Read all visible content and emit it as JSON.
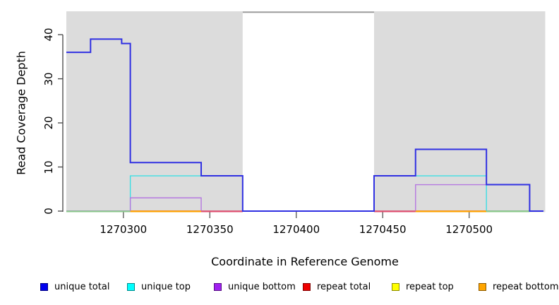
{
  "chart_data": {
    "type": "line",
    "step": true,
    "title": "",
    "xlabel": "Coordinate in Reference Genome",
    "ylabel": "Read Coverage Depth",
    "xlim": [
      1270267,
      1270543
    ],
    "ylim": [
      0,
      45.3
    ],
    "x_ticks": [
      1270300,
      1270350,
      1270400,
      1270450,
      1270500
    ],
    "y_ticks": [
      0,
      10,
      20,
      30,
      40
    ],
    "grid": false,
    "legend_position": "bottom",
    "background_regions": [
      {
        "name": "covered-region-left",
        "x0": 1270267,
        "x1": 1270369,
        "color": "#DCDCDC"
      },
      {
        "name": "covered-region-right",
        "x0": 1270445,
        "x1": 1270544,
        "color": "#DCDCDC"
      }
    ],
    "gap_top_line": {
      "x0": 1270369,
      "x1": 1270445,
      "y": 45.1,
      "color": "#9C9C9C"
    },
    "series": [
      {
        "name": "unique total",
        "color": "#3030E2",
        "legend_color": "#0000EE",
        "points": [
          [
            1270267,
            36
          ],
          [
            1270281,
            36
          ],
          [
            1270281,
            39
          ],
          [
            1270299,
            39
          ],
          [
            1270299,
            38
          ],
          [
            1270304,
            38
          ],
          [
            1270304,
            11
          ],
          [
            1270345,
            11
          ],
          [
            1270345,
            8
          ],
          [
            1270369,
            8
          ],
          [
            1270369,
            0
          ],
          [
            1270445,
            0
          ],
          [
            1270445,
            8
          ],
          [
            1270469,
            8
          ],
          [
            1270469,
            14
          ],
          [
            1270510,
            14
          ],
          [
            1270510,
            6
          ],
          [
            1270535,
            6
          ],
          [
            1270535,
            0
          ],
          [
            1270543,
            0
          ]
        ]
      },
      {
        "name": "unique top",
        "color": "#3CDEE4",
        "legend_color": "#00FFFF",
        "points": [
          [
            1270267,
            0
          ],
          [
            1270304,
            0
          ],
          [
            1270304,
            8
          ],
          [
            1270369,
            8
          ],
          [
            1270369,
            0
          ],
          [
            1270445,
            0
          ],
          [
            1270445,
            8
          ],
          [
            1270510,
            8
          ],
          [
            1270510,
            0
          ],
          [
            1270543,
            0
          ]
        ]
      },
      {
        "name": "unique bottom",
        "color": "#B578E0",
        "legend_color": "#A020F0",
        "points": [
          [
            1270267,
            0
          ],
          [
            1270304,
            0
          ],
          [
            1270304,
            3
          ],
          [
            1270345,
            3
          ],
          [
            1270345,
            0
          ],
          [
            1270469,
            0
          ],
          [
            1270469,
            6
          ],
          [
            1270535,
            6
          ],
          [
            1270535,
            0
          ],
          [
            1270543,
            0
          ]
        ]
      },
      {
        "name": "repeat total",
        "color": "#E05070",
        "legend_color": "#EE0000",
        "points": [
          [
            1270267,
            0
          ],
          [
            1270543,
            0
          ]
        ]
      },
      {
        "name": "repeat top",
        "color": "#F5F500",
        "legend_color": "#FFFF00",
        "points": [
          [
            1270267,
            0
          ],
          [
            1270543,
            0
          ]
        ]
      },
      {
        "name": "repeat bottom",
        "color": "#FFA500",
        "legend_color": "#FFA500",
        "points": [
          [
            1270267,
            0
          ],
          [
            1270543,
            0
          ]
        ]
      }
    ],
    "baseline_segments": [
      {
        "x0": 1270267,
        "x1": 1270304,
        "color": "#8CCB8C"
      },
      {
        "x0": 1270304,
        "x1": 1270345,
        "color": "#FFA500"
      },
      {
        "x0": 1270345,
        "x1": 1270369,
        "color": "#E05070"
      },
      {
        "x0": 1270445,
        "x1": 1270469,
        "color": "#E05070"
      },
      {
        "x0": 1270469,
        "x1": 1270510,
        "color": "#FFA500"
      },
      {
        "x0": 1270510,
        "x1": 1270535,
        "color": "#8CCB8C"
      }
    ],
    "legend": [
      {
        "label": "unique total",
        "color": "#0000EE"
      },
      {
        "label": "unique top",
        "color": "#00FFFF"
      },
      {
        "label": "unique bottom",
        "color": "#A020F0"
      },
      {
        "label": "repeat total",
        "color": "#EE0000"
      },
      {
        "label": "repeat top",
        "color": "#FFFF00"
      },
      {
        "label": "repeat bottom",
        "color": "#FFA500"
      }
    ],
    "axis_color": "#444444",
    "tick_color": "#555555"
  }
}
